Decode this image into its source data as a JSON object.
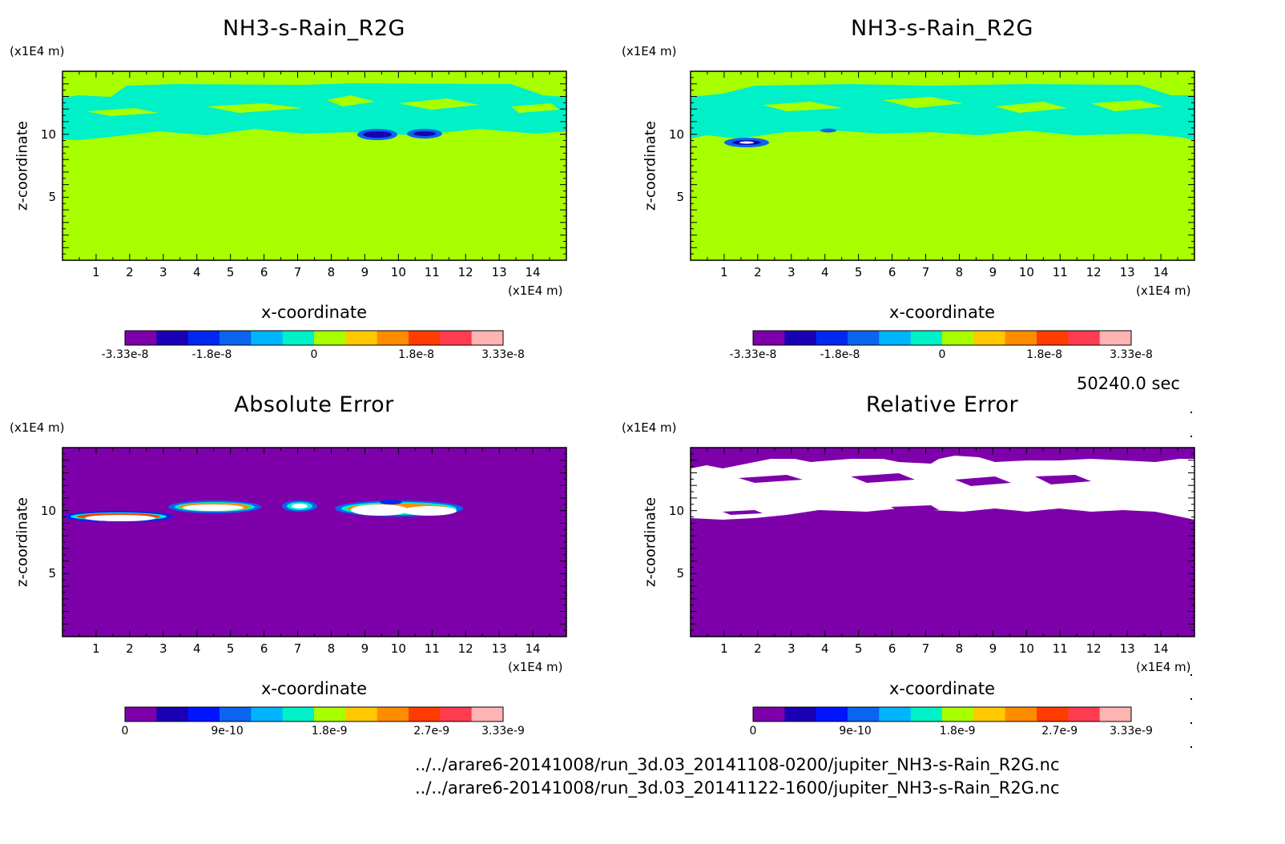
{
  "chart_data": [
    {
      "type": "heatmap",
      "title": "NH3-s-Rain_R2G",
      "xlabel": "x-coordinate",
      "ylabel": "z-coordinate",
      "x_unit": "(x1E4 m)",
      "z_unit": "(x1E4 m)",
      "xlim": [
        0,
        15
      ],
      "zlim": [
        0,
        15
      ],
      "x_ticks": [
        "1",
        "2",
        "3",
        "4",
        "5",
        "6",
        "7",
        "8",
        "9",
        "10",
        "11",
        "12",
        "13",
        "14"
      ],
      "z_ticks": [
        "5",
        "10"
      ],
      "colorbar": {
        "range": [
          -3.33e-08,
          3.33e-08
        ],
        "tick_labels": [
          "-3.33e-8",
          "-1.8e-8",
          "0",
          "1.8e-8",
          "3.33e-8"
        ],
        "colors": [
          "#7d00aa",
          "#1a00b4",
          "#0028f0",
          "#0a64f0",
          "#00b4ff",
          "#00f0c8",
          "#a8ff00",
          "#ffc800",
          "#ff8c00",
          "#ff3c00",
          "#ff3c50",
          "#ffb4b4"
        ]
      }
    },
    {
      "type": "heatmap",
      "title": "NH3-s-Rain_R2G",
      "xlabel": "x-coordinate",
      "ylabel": "z-coordinate",
      "x_unit": "(x1E4 m)",
      "z_unit": "(x1E4 m)",
      "xlim": [
        0,
        15
      ],
      "zlim": [
        0,
        15
      ],
      "x_ticks": [
        "1",
        "2",
        "3",
        "4",
        "5",
        "6",
        "7",
        "8",
        "9",
        "10",
        "11",
        "12",
        "13",
        "14"
      ],
      "z_ticks": [
        "5",
        "10"
      ],
      "colorbar": {
        "range": [
          -3.33e-08,
          3.33e-08
        ],
        "tick_labels": [
          "-3.33e-8",
          "-1.8e-8",
          "0",
          "1.8e-8",
          "3.33e-8"
        ],
        "colors": [
          "#7d00aa",
          "#1a00b4",
          "#0028f0",
          "#0a64f0",
          "#00b4ff",
          "#00f0c8",
          "#a8ff00",
          "#ffc800",
          "#ff8c00",
          "#ff3c00",
          "#ff3c50",
          "#ffb4b4"
        ]
      }
    },
    {
      "type": "heatmap",
      "title": "Absolute Error",
      "xlabel": "x-coordinate",
      "ylabel": "z-coordinate",
      "x_unit": "(x1E4 m)",
      "z_unit": "(x1E4 m)",
      "xlim": [
        0,
        15
      ],
      "zlim": [
        0,
        15
      ],
      "x_ticks": [
        "1",
        "2",
        "3",
        "4",
        "5",
        "6",
        "7",
        "8",
        "9",
        "10",
        "11",
        "12",
        "13",
        "14"
      ],
      "z_ticks": [
        "5",
        "10"
      ],
      "colorbar": {
        "range": [
          0,
          3.33e-09
        ],
        "tick_labels": [
          "0",
          "9e-10",
          "1.8e-9",
          "2.7e-9",
          "3.33e-9"
        ],
        "colors": [
          "#7d00aa",
          "#1a00b4",
          "#0014ff",
          "#0a64f0",
          "#00b4ff",
          "#00f0c8",
          "#a8ff00",
          "#ffc800",
          "#ff8c00",
          "#ff3c00",
          "#ff3c50",
          "#ffb4b4"
        ]
      }
    },
    {
      "type": "heatmap",
      "title": "Relative Error",
      "xlabel": "x-coordinate",
      "ylabel": "z-coordinate",
      "x_unit": "(x1E4 m)",
      "z_unit": "(x1E4 m)",
      "xlim": [
        0,
        15
      ],
      "zlim": [
        0,
        15
      ],
      "x_ticks": [
        "1",
        "2",
        "3",
        "4",
        "5",
        "6",
        "7",
        "8",
        "9",
        "10",
        "11",
        "12",
        "13",
        "14"
      ],
      "z_ticks": [
        "5",
        "10"
      ],
      "colorbar": {
        "range": [
          0,
          3.33e-09
        ],
        "tick_labels": [
          "0",
          "9e-10",
          "1.8e-9",
          "2.7e-9",
          "3.33e-9"
        ],
        "colors": [
          "#7d00aa",
          "#1a00b4",
          "#0014ff",
          "#0a64f0",
          "#00b4ff",
          "#00f0c8",
          "#a8ff00",
          "#ffc800",
          "#ff8c00",
          "#ff3c00",
          "#ff3c50",
          "#ffb4b4"
        ]
      }
    }
  ],
  "footer": {
    "time": "50240.0 sec",
    "path1": "../../arare6-20141008/run_3d.03_20141108-0200/jupiter_NH3-s-Rain_R2G.nc",
    "path2": "../../arare6-20141008/run_3d.03_20141122-1600/jupiter_NH3-s-Rain_R2G.nc"
  },
  "colors": {
    "green": "#a8ff00",
    "cyan": "#00f0c8",
    "purple": "#7d00aa",
    "white": "#ffffff"
  }
}
